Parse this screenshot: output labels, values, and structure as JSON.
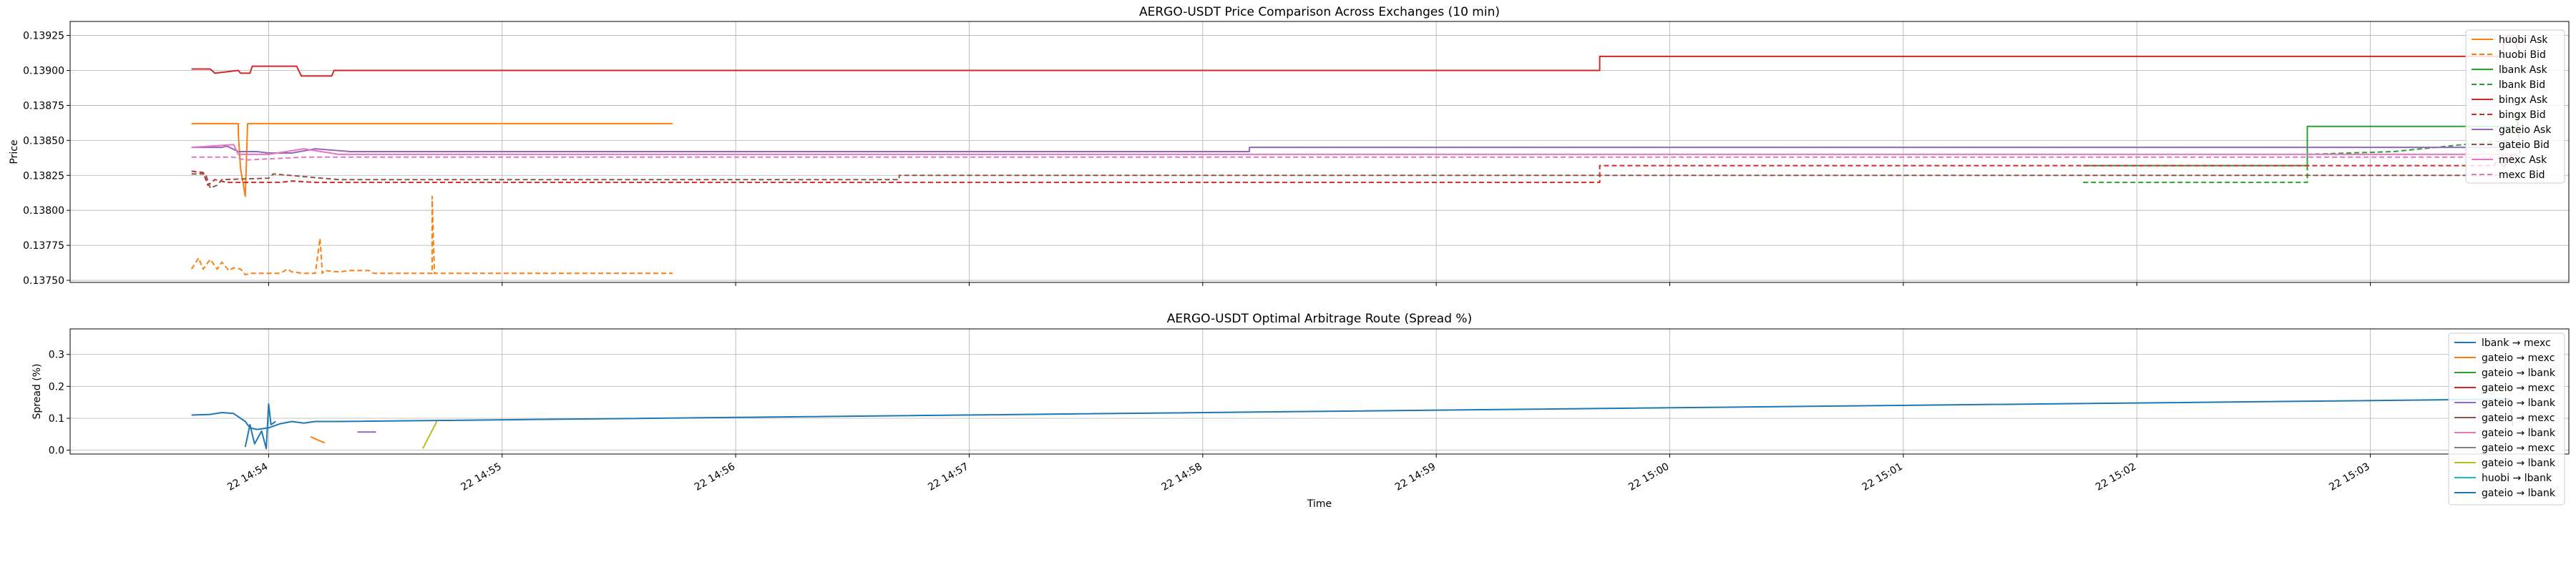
{
  "chart_data": [
    {
      "type": "line",
      "title": "AERGO-USDT Price Comparison Across Exchanges (10 min)",
      "xlabel": "",
      "ylabel": "Price",
      "ylim": [
        0.137485,
        0.13935
      ],
      "yticks": [
        0.1375,
        0.13775,
        0.138,
        0.13825,
        0.1385,
        0.13875,
        0.139,
        0.13925
      ],
      "ytick_labels": [
        "0.13750",
        "0.13775",
        "0.13800",
        "0.13825",
        "0.13850",
        "0.13875",
        "0.13900",
        "0.13925"
      ],
      "xlim_minutes": [
        53.15,
        63.85
      ],
      "xticks_minutes": [
        54,
        55,
        56,
        57,
        58,
        59,
        60,
        61,
        62,
        63
      ],
      "xtick_labels": [
        "",
        "",
        "",
        "",
        "",
        "",
        "",
        "",
        "",
        ""
      ],
      "grid": true,
      "legend_position": "top-right",
      "series": [
        {
          "name": "huobi Ask",
          "color": "#ff7f0e",
          "dash": "solid",
          "x": [
            53.67,
            53.87,
            53.87,
            53.88,
            53.9,
            53.91,
            55.73
          ],
          "y": [
            0.13862,
            0.13862,
            0.13855,
            0.1383,
            0.1381,
            0.13862,
            0.13862
          ]
        },
        {
          "name": "huobi Bid",
          "color": "#ff7f0e",
          "dash": "dashed",
          "x": [
            53.67,
            53.7,
            53.72,
            53.75,
            53.78,
            53.8,
            53.83,
            53.85,
            53.88,
            53.9,
            53.92,
            54.05,
            54.08,
            54.1,
            54.15,
            54.2,
            54.22,
            54.23,
            54.24,
            54.3,
            54.35,
            54.43,
            54.45,
            54.5,
            54.7,
            54.7,
            54.71,
            54.72,
            55.73
          ],
          "y": [
            0.13758,
            0.13766,
            0.13758,
            0.13765,
            0.13758,
            0.13763,
            0.13757,
            0.13759,
            0.13758,
            0.13754,
            0.13755,
            0.13755,
            0.13758,
            0.13756,
            0.13755,
            0.13755,
            0.1378,
            0.13755,
            0.13757,
            0.13756,
            0.13757,
            0.13757,
            0.13755,
            0.13755,
            0.13755,
            0.1381,
            0.13755,
            0.13755,
            0.13755
          ]
        },
        {
          "name": "lbank Ask",
          "color": "#2ca02c",
          "dash": "solid",
          "x": [
            61.77,
            62.73,
            62.73,
            63.63,
            63.63,
            63.64
          ],
          "y": [
            0.13832,
            0.13832,
            0.1386,
            0.1386,
            0.1387,
            0.1384
          ]
        },
        {
          "name": "lbank Bid",
          "color": "#2ca02c",
          "dash": "dashed",
          "x": [
            61.77,
            62.73,
            62.73,
            63.1,
            63.4,
            63.6,
            63.64
          ],
          "y": [
            0.1382,
            0.1382,
            0.1384,
            0.13842,
            0.13847,
            0.1385,
            0.1385
          ]
        },
        {
          "name": "bingx Ask",
          "color": "#d62728",
          "dash": "solid",
          "x": [
            53.67,
            53.75,
            53.77,
            53.87,
            53.88,
            53.92,
            53.93,
            54.12,
            54.14,
            54.27,
            54.28,
            59.7,
            59.7,
            63.57,
            63.57,
            63.59,
            63.61,
            63.63
          ],
          "y": [
            0.13901,
            0.13901,
            0.13898,
            0.139,
            0.13898,
            0.13898,
            0.13903,
            0.13903,
            0.13896,
            0.13896,
            0.139,
            0.139,
            0.1391,
            0.1391,
            0.1392,
            0.13925,
            0.13925,
            0.13915
          ]
        },
        {
          "name": "bingx Bid",
          "color": "#d62728",
          "dash": "dashed",
          "x": [
            53.67,
            53.72,
            53.74,
            53.77,
            53.82,
            54.05,
            54.1,
            54.2,
            59.7,
            59.7,
            63.53,
            63.55,
            63.57,
            63.6,
            63.63
          ],
          "y": [
            0.13828,
            0.13827,
            0.13818,
            0.13822,
            0.1382,
            0.1382,
            0.13821,
            0.1382,
            0.1382,
            0.13832,
            0.13832,
            0.13838,
            0.1383,
            0.1384,
            0.1383
          ]
        },
        {
          "name": "gateio Ask",
          "color": "#9467bd",
          "dash": "solid",
          "x": [
            53.67,
            53.8,
            53.82,
            53.87,
            53.95,
            54.0,
            54.1,
            54.2,
            54.35,
            54.55,
            54.7,
            58.2,
            58.2,
            63.63
          ],
          "y": [
            0.13845,
            0.13845,
            0.13846,
            0.13842,
            0.13842,
            0.13841,
            0.13841,
            0.13844,
            0.13842,
            0.13842,
            0.13842,
            0.13842,
            0.13845,
            0.13845
          ]
        },
        {
          "name": "gateio Bid",
          "color": "#8c564b",
          "dash": "dashed",
          "x": [
            53.67,
            53.73,
            53.75,
            53.78,
            53.8,
            54.0,
            54.02,
            54.3,
            56.7,
            56.7,
            63.63
          ],
          "y": [
            0.13826,
            0.13826,
            0.13816,
            0.13818,
            0.13822,
            0.13823,
            0.13826,
            0.13822,
            0.13822,
            0.13825,
            0.13825
          ]
        },
        {
          "name": "mexc Ask",
          "color": "#e377c2",
          "dash": "solid",
          "x": [
            53.67,
            53.85,
            53.87,
            54.0,
            54.15,
            54.3,
            63.63
          ],
          "y": [
            0.13845,
            0.13847,
            0.1384,
            0.1384,
            0.13844,
            0.1384,
            0.1384
          ]
        },
        {
          "name": "mexc Bid",
          "color": "#e377c2",
          "dash": "dashed",
          "x": [
            53.67,
            53.85,
            53.9,
            54.15,
            54.35,
            54.6,
            54.7,
            63.63
          ],
          "y": [
            0.13838,
            0.13838,
            0.13836,
            0.13838,
            0.13838,
            0.13838,
            0.13838,
            0.13838
          ]
        }
      ]
    },
    {
      "type": "line",
      "title": "AERGO-USDT Optimal Arbitrage Route (Spread %)",
      "xlabel": "Time",
      "ylabel": "Spread (%)",
      "ylim": [
        -0.012,
        0.38
      ],
      "yticks": [
        0.0,
        0.1,
        0.2,
        0.3
      ],
      "ytick_labels": [
        "0.0",
        "0.1",
        "0.2",
        "0.3"
      ],
      "xlim_minutes": [
        53.15,
        63.85
      ],
      "xticks_minutes": [
        54,
        55,
        56,
        57,
        58,
        59,
        60,
        61,
        62,
        63
      ],
      "xtick_labels": [
        "22 14:54",
        "22 14:55",
        "22 14:56",
        "22 14:57",
        "22 14:58",
        "22 14:59",
        "22 15:00",
        "22 15:01",
        "22 15:02",
        "22 15:03"
      ],
      "grid": true,
      "legend_position": "top-right",
      "series": [
        {
          "name": "lbank → mexc",
          "color": "#1f77b4",
          "x": [
            53.67,
            53.75,
            53.8,
            53.85,
            53.9,
            53.92,
            53.95,
            54.0,
            54.05,
            54.1,
            54.15,
            54.2,
            54.3,
            63.6,
            63.61
          ],
          "y": [
            0.11,
            0.112,
            0.118,
            0.115,
            0.09,
            0.07,
            0.065,
            0.07,
            0.083,
            0.09,
            0.085,
            0.09,
            0.09,
            0.16,
            0.075
          ]
        },
        {
          "name": "gateio → mexc",
          "color": "#ff7f0e",
          "x": [
            54.18,
            54.24
          ],
          "y": [
            0.042,
            0.023
          ]
        },
        {
          "name": "gateio → lbank",
          "color": "#2ca02c",
          "x": [],
          "y": []
        },
        {
          "name": "gateio → mexc",
          "color": "#d62728",
          "x": [],
          "y": []
        },
        {
          "name": "gateio → lbank",
          "color": "#9467bd",
          "x": [
            54.38,
            54.46
          ],
          "y": [
            0.057,
            0.057
          ]
        },
        {
          "name": "gateio → mexc",
          "color": "#8c564b",
          "x": [],
          "y": []
        },
        {
          "name": "gateio → lbank",
          "color": "#e377c2",
          "x": [],
          "y": []
        },
        {
          "name": "gateio → mexc",
          "color": "#7f7f7f",
          "x": [],
          "y": []
        },
        {
          "name": "gateio → lbank",
          "color": "#bcbd22",
          "x": [
            54.66,
            54.72
          ],
          "y": [
            0.005,
            0.09
          ]
        },
        {
          "name": "huobi → lbank",
          "color": "#17becf",
          "x": [],
          "y": []
        },
        {
          "name": "gateio → lbank",
          "color": "#1f77b4",
          "x": [
            53.9,
            53.92,
            53.94,
            53.97,
            53.99,
            54.0,
            54.01,
            54.03
          ],
          "y": [
            0.01,
            0.08,
            0.02,
            0.06,
            0.005,
            0.145,
            0.08,
            0.09
          ]
        }
      ]
    }
  ]
}
